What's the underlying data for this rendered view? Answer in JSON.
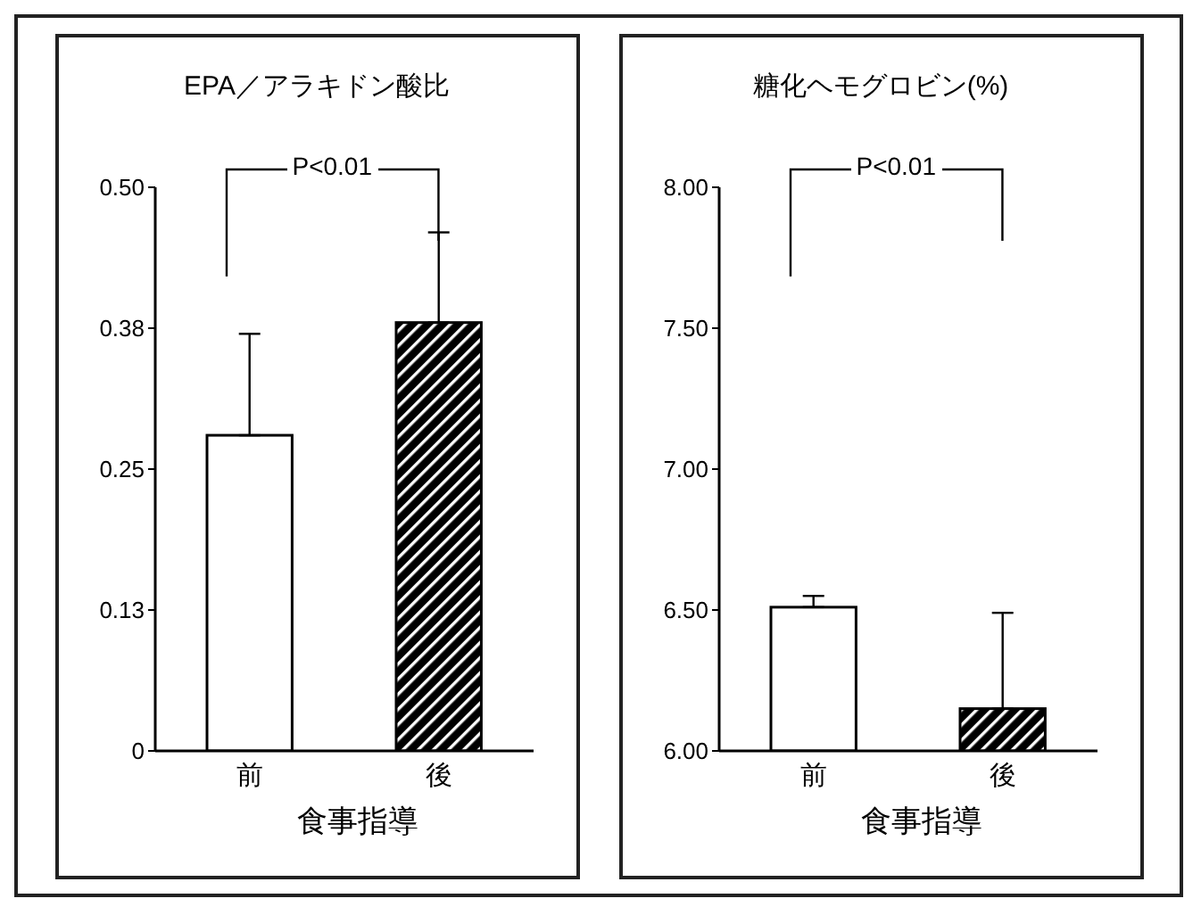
{
  "chart_data": [
    {
      "type": "bar",
      "title": "EPA／アラキドン酸比",
      "xlabel": "食事指導",
      "categories": [
        "前",
        "後"
      ],
      "values": [
        0.28,
        0.38
      ],
      "errors": [
        [
          0.28,
          0.37
        ],
        [
          0.38,
          0.46
        ]
      ],
      "colors": [
        "#ffffff",
        "#000000"
      ],
      "ylim": [
        0,
        0.5
      ],
      "yticks": [
        0,
        {
          "value": 0.125,
          "label": "0.13"
        },
        0.25,
        {
          "value": 0.375,
          "label": "0.38"
        },
        {
          "value": 0.5,
          "label": "0.50"
        }
      ],
      "annotations": [
        "P<0.01"
      ],
      "grid": false,
      "legend": false
    },
    {
      "type": "bar",
      "title": "糖化ヘモグロビン(%)",
      "xlabel": "食事指導",
      "categories": [
        "前",
        "後"
      ],
      "values": [
        6.51,
        6.15
      ],
      "errors": [
        [
          6.51,
          6.55
        ],
        [
          6.15,
          6.49
        ]
      ],
      "colors": [
        "#ffffff",
        "#000000"
      ],
      "ylim": [
        6,
        8
      ],
      "yticks": [
        {
          "value": 6,
          "label": "6.00"
        },
        {
          "value": 6.5,
          "label": "6.50"
        },
        {
          "value": 7,
          "label": "7.00"
        },
        {
          "value": 7.5,
          "label": "7.50"
        },
        {
          "value": 8,
          "label": "8.00"
        }
      ],
      "annotations": [
        "P<0.01"
      ],
      "grid": false,
      "legend": false
    }
  ]
}
